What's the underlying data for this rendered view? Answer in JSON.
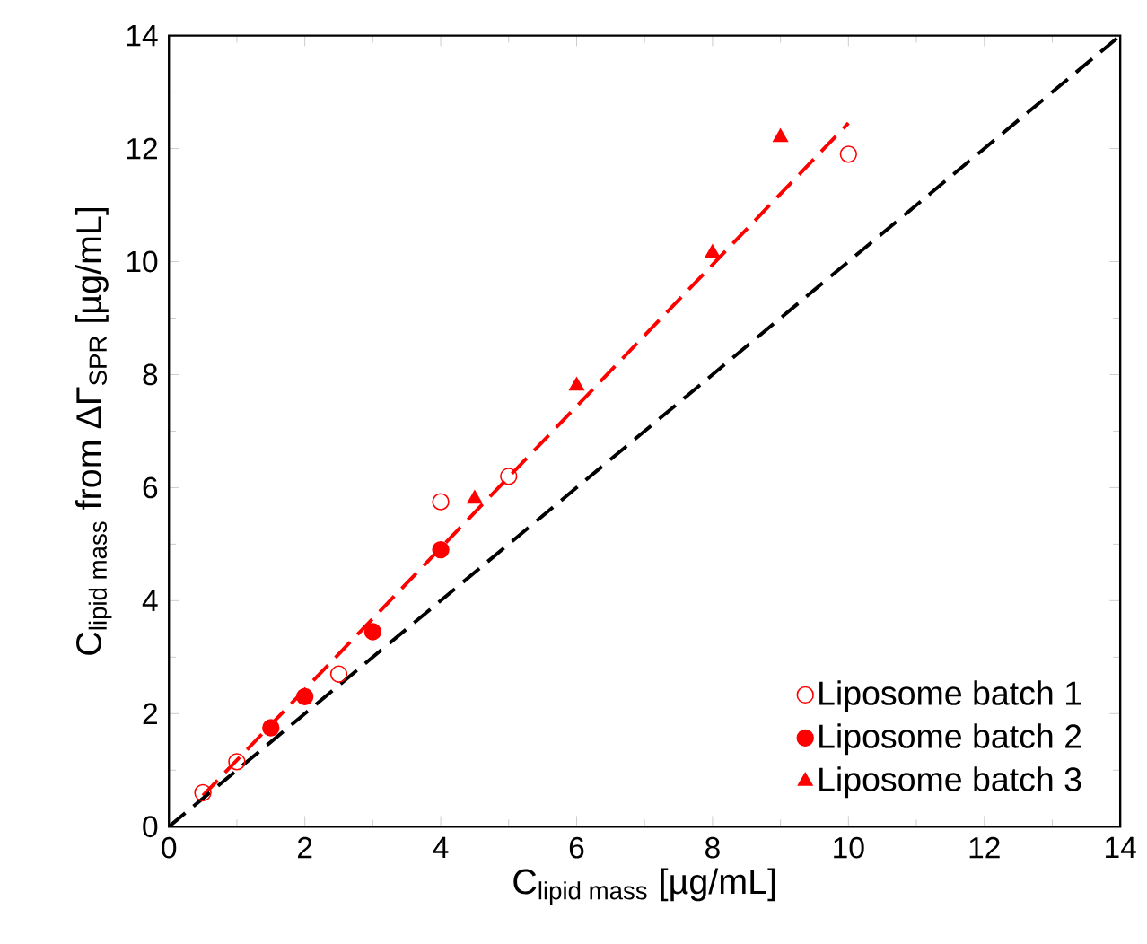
{
  "chart_data": {
    "type": "scatter",
    "xlabel": "\\text{C}_{\\text{lipid mass}}\\text{ [µg/mL]}",
    "ylabel": "\\text{C}_{\\text{lipid mass}}\\text{ from ΔΓ}_{\\text{SPR}}\\text{ [µg/mL]}",
    "xlim": [
      0,
      14
    ],
    "ylim": [
      0,
      14
    ],
    "xticks": [
      0,
      2,
      4,
      6,
      8,
      10,
      12,
      14
    ],
    "yticks": [
      0,
      2,
      4,
      6,
      8,
      10,
      12,
      14
    ],
    "legend": "bottom right",
    "grid": false,
    "series": [
      {
        "name": "Liposome batch 1",
        "color": "#ff0000",
        "marker": "circle",
        "x": [
          0.5,
          1,
          2.5,
          4,
          5,
          10
        ],
        "values": [
          0.6,
          1.15,
          2.7,
          5.75,
          6.2,
          11.9
        ]
      },
      {
        "name": "Liposome batch 2",
        "color": "#ff0000",
        "marker": "circle",
        "x": [
          1.5,
          2,
          3,
          4
        ],
        "values": [
          1.75,
          2.3,
          3.45,
          4.9
        ]
      },
      {
        "name": "Liposome batch 3",
        "color": "#ff0000",
        "marker": "triangle",
        "x": [
          4.5,
          6,
          8,
          9
        ],
        "values": [
          5.8,
          7.8,
          10.15,
          12.2
        ]
      },
      {
        "type": "line",
        "color": "#ff0000",
        "line_style": "dashed",
        "marker": "none",
        "x": [
          0.5,
          10
        ],
        "values": [
          0.55,
          12.45
        ]
      },
      {
        "type": "line",
        "color": "#000000",
        "line_style": "dashed",
        "marker": "none",
        "x": [
          0,
          14
        ],
        "values": [
          0,
          14
        ]
      }
    ]
  }
}
